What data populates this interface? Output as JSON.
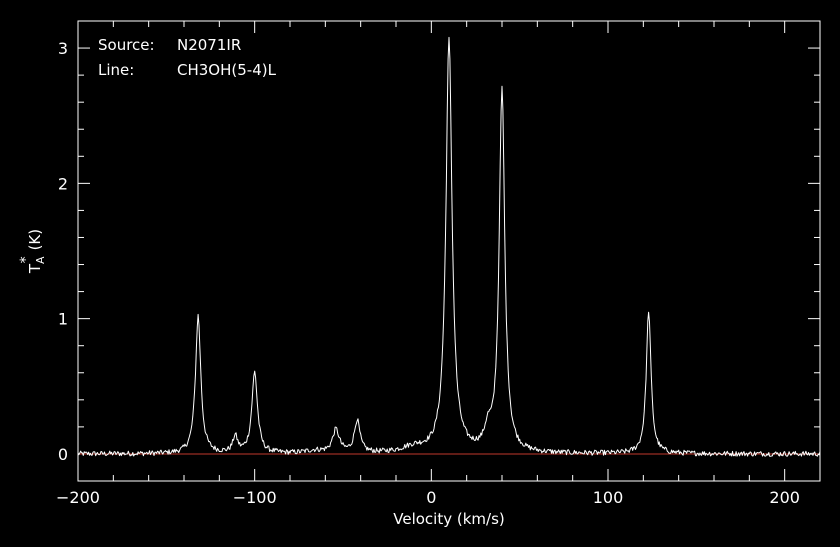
{
  "chart_data": {
    "type": "line",
    "annotations": [
      {
        "key": "Source:",
        "value": "N2071IR"
      },
      {
        "key": "Line:",
        "value": "CH3OH(5-4)L"
      }
    ],
    "xlabel": "Velocity (km/s)",
    "ylabel_main": "T",
    "ylabel_sub": "A",
    "ylabel_sup": "*",
    "ylabel_unit": "(K)",
    "xlim": [
      -200,
      220
    ],
    "ylim": [
      -0.2,
      3.2
    ],
    "x_ticks": [
      -200,
      -100,
      0,
      100,
      200
    ],
    "x_tick_labels": [
      "−200",
      "−100",
      "0",
      "100",
      "200"
    ],
    "y_ticks": [
      0,
      1,
      2,
      3
    ],
    "y_tick_labels": [
      "0",
      "1",
      "2",
      "3"
    ],
    "grid": false,
    "baseline_y": 0,
    "colors": {
      "background": "#000000",
      "foreground": "#ffffff",
      "spectrum": "#ffffff",
      "baseline": "#c0392b"
    },
    "series": [
      {
        "components": [
          {
            "center": -132,
            "amplitude": 1.02,
            "width": 1.8
          },
          {
            "center": -111,
            "amplitude": 0.12,
            "width": 1.6
          },
          {
            "center": -100,
            "amplitude": 0.6,
            "width": 1.9
          },
          {
            "center": -66,
            "amplitude": 0.02,
            "width": 6
          },
          {
            "center": -54,
            "amplitude": 0.17,
            "width": 2.3
          },
          {
            "center": -42,
            "amplitude": 0.24,
            "width": 1.9
          },
          {
            "center": -10,
            "amplitude": 0.04,
            "width": 8
          },
          {
            "center": 10,
            "amplitude": 3.05,
            "width": 2.1
          },
          {
            "center": 32,
            "amplitude": 0.13,
            "width": 2.2
          },
          {
            "center": 40,
            "amplitude": 2.68,
            "width": 1.9
          },
          {
            "center": 123,
            "amplitude": 1.06,
            "width": 1.6
          }
        ],
        "noise_rms": 0.012
      }
    ]
  }
}
